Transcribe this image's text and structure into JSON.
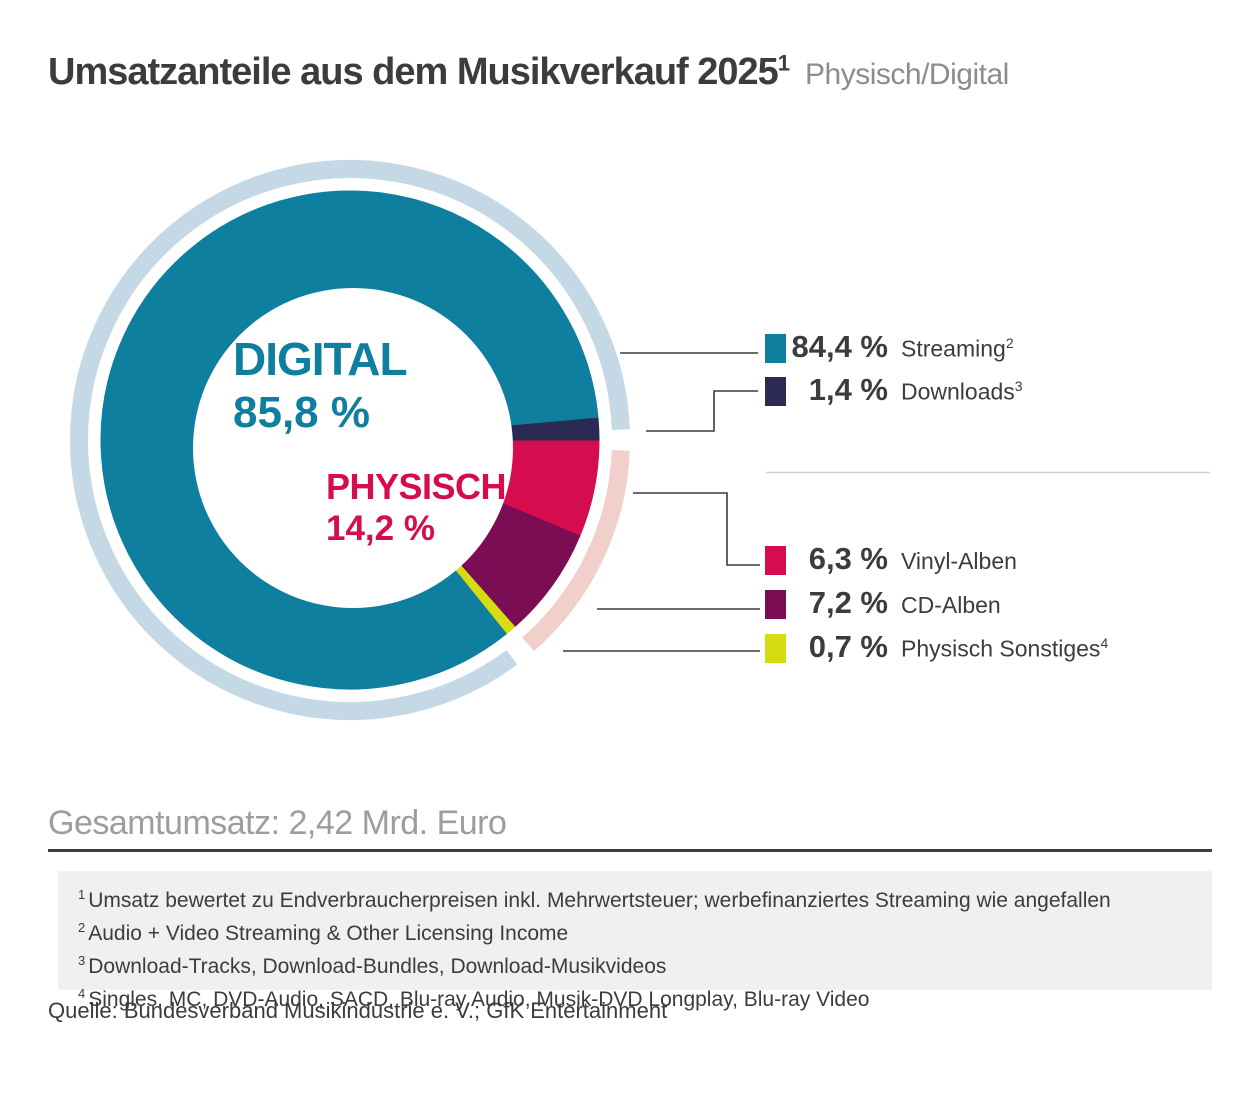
{
  "header": {
    "title": "Umsatzanteile aus dem Musikverkauf 2025",
    "title_footnote_mark": "1",
    "subtitle": "Physisch/Digital"
  },
  "chart_data": {
    "type": "pie",
    "donut": true,
    "title": "Umsatzanteile aus dem Musikverkauf 2025 — Physisch/Digital",
    "units": "%",
    "segments": [
      {
        "label": "Streaming",
        "footnote_mark": "2",
        "value": 84.4,
        "display": "84,4 %",
        "color": "#0e7f9e",
        "group": "digital"
      },
      {
        "label": "Downloads",
        "footnote_mark": "3",
        "value": 1.4,
        "display": "1,4 %",
        "color": "#2b2a52",
        "group": "digital"
      },
      {
        "label": "Vinyl-Alben",
        "footnote_mark": "",
        "value": 6.3,
        "display": "6,3 %",
        "color": "#d50c4d",
        "group": "physisch"
      },
      {
        "label": "CD-Alben",
        "footnote_mark": "",
        "value": 7.2,
        "display": "7,2 %",
        "color": "#7a0d54",
        "group": "physisch"
      },
      {
        "label": "Physisch Sonstiges",
        "footnote_mark": "4",
        "value": 0.7,
        "display": "0,7 %",
        "color": "#d7db12",
        "group": "physisch"
      }
    ],
    "groups": [
      {
        "id": "digital",
        "name": "DIGITAL",
        "value": 85.8,
        "display": "85,8 %",
        "color": "#0e7f9e",
        "ring_color": "#c5d8e5"
      },
      {
        "id": "physisch",
        "name": "PHYSISCH",
        "value": 14.2,
        "display": "14,2 %",
        "color": "#d50c4d",
        "ring_color": "#f1cfcb"
      }
    ],
    "layout": {
      "start_angle_north_cw_deg": 90,
      "slice_draw_order": [
        2,
        3,
        4,
        0,
        1
      ],
      "legend_position": "right",
      "outer_group_ring": true,
      "gridlines": false
    }
  },
  "summary": {
    "total_label": "Gesamtumsatz: 2,42 Mrd. Euro"
  },
  "footnotes": [
    {
      "mark": "1",
      "text": "Umsatz bewertet zu Endverbraucherpreisen inkl. Mehrwertsteuer; werbefinanziertes Streaming wie angefallen"
    },
    {
      "mark": "2",
      "text": "Audio + Video Streaming & Other Licensing Income"
    },
    {
      "mark": "3",
      "text": "Download-Tracks, Download-Bundles, Download-Musikvideos"
    },
    {
      "mark": "4",
      "text": "Singles, MC, DVD-Audio, SACD, Blu-ray Audio, Musik-DVD Longplay, Blu-ray Video"
    }
  ],
  "source": {
    "text": "Quelle: Bundesverband Musikindustrie e. V.; GfK Entertainment"
  }
}
